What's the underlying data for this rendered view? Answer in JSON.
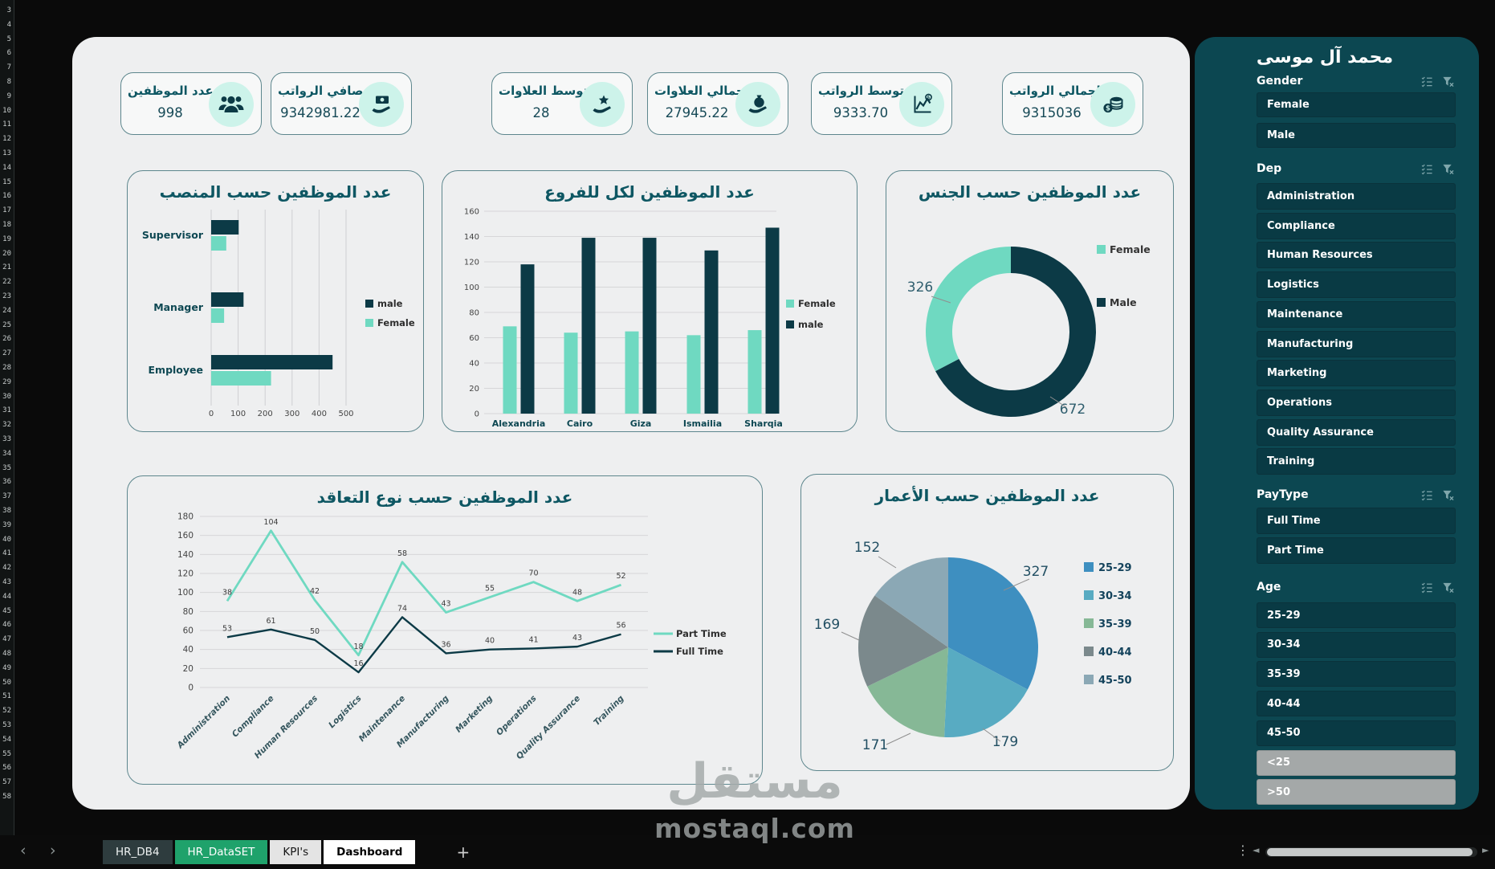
{
  "sidebar": {
    "title": "محمد آل موسى",
    "slicers": [
      {
        "name": "Gender",
        "items": [
          {
            "label": "Female"
          },
          {
            "label": "Male"
          }
        ]
      },
      {
        "name": "Dep",
        "items": [
          {
            "label": "Administration"
          },
          {
            "label": "Compliance"
          },
          {
            "label": "Human Resources"
          },
          {
            "label": "Logistics"
          },
          {
            "label": "Maintenance"
          },
          {
            "label": "Manufacturing"
          },
          {
            "label": "Marketing"
          },
          {
            "label": "Operations"
          },
          {
            "label": "Quality Assurance"
          },
          {
            "label": "Training"
          }
        ]
      },
      {
        "name": "PayType",
        "items": [
          {
            "label": "Full Time"
          },
          {
            "label": "Part Time"
          }
        ]
      },
      {
        "name": "Age",
        "items": [
          {
            "label": "25-29"
          },
          {
            "label": "30-34"
          },
          {
            "label": "35-39"
          },
          {
            "label": "40-44"
          },
          {
            "label": "45-50"
          },
          {
            "label": "<25",
            "disabled": true
          },
          {
            "label": ">50",
            "disabled": true
          }
        ]
      }
    ],
    "header_icons": [
      "multiselect-icon",
      "clear-filter-icon"
    ]
  },
  "kpi_cards": [
    {
      "title": "عدد الموظفين",
      "value": "998",
      "icon": "people-icon"
    },
    {
      "title": "صافي الرواتب",
      "value": "9342981.22",
      "icon": "cash-hand-icon"
    },
    {
      "title": "متوسط العلاوات",
      "value": "28",
      "icon": "star-hand-icon"
    },
    {
      "title": "إجمالي العلاوات",
      "value": "27945.22",
      "icon": "moneybag-hand-icon"
    },
    {
      "title": "متوسط الرواتب",
      "value": "9333.70",
      "icon": "salary-chart-icon"
    },
    {
      "title": "إجمالي الرواتب",
      "value": "9315036",
      "icon": "coins-icon"
    }
  ],
  "chart_data": [
    {
      "type": "bar",
      "orientation": "horizontal",
      "title": "عدد الموظفين حسب المنصب",
      "categories": [
        "Supervisor",
        "Manager",
        "Employee"
      ],
      "series": [
        {
          "name": "male",
          "color": "#0c3a46",
          "values": [
            102,
            120,
            450
          ]
        },
        {
          "name": "Female",
          "color": "#6fd9c1",
          "values": [
            56,
            48,
            222
          ]
        }
      ],
      "xlim": [
        0,
        500
      ],
      "xticks": [
        0,
        100,
        200,
        300,
        400,
        500
      ],
      "grid": true,
      "legend_position": "right"
    },
    {
      "type": "column",
      "title": "عدد الموظفين لكل للفروع",
      "categories": [
        "Alexandria",
        "Cairo",
        "Giza",
        "Ismailia",
        "Sharqia"
      ],
      "series": [
        {
          "name": "Female",
          "color": "#6fd9c1",
          "values": [
            69,
            64,
            65,
            62,
            66
          ]
        },
        {
          "name": "male",
          "color": "#0c3a46",
          "values": [
            118,
            139,
            139,
            129,
            147
          ]
        }
      ],
      "ylim": [
        0,
        160
      ],
      "yticks": [
        0,
        20,
        40,
        60,
        80,
        100,
        120,
        140,
        160
      ],
      "grid": true,
      "legend_position": "right"
    },
    {
      "type": "donut",
      "title": "عدد الموظفين حسب الجنس",
      "slices": [
        {
          "label": "Male",
          "value": 672,
          "color": "#0c3a46"
        },
        {
          "label": "Female",
          "value": 326,
          "color": "#6fd9c1"
        }
      ],
      "legend": [
        "Female",
        "Male"
      ],
      "data_labels": true,
      "legend_position": "right"
    },
    {
      "type": "line",
      "stacked": true,
      "title": "عدد الموظفين حسب نوع التعاقد",
      "categories": [
        "Administration",
        "Compliance",
        "Human Resources",
        "Logistics",
        "Maintenance",
        "Manufacturing",
        "Marketing",
        "Operations",
        "Quality Assurance",
        "Training"
      ],
      "series": [
        {
          "name": "Part Time",
          "color": "#6fd9c1",
          "values": [
            38,
            104,
            42,
            18,
            58,
            43,
            55,
            70,
            48,
            52
          ]
        },
        {
          "name": "Full Time",
          "color": "#0c3a46",
          "values": [
            53,
            61,
            50,
            16,
            74,
            36,
            40,
            41,
            43,
            56
          ]
        }
      ],
      "ylim": [
        0,
        180
      ],
      "yticks": [
        0,
        20,
        40,
        60,
        80,
        100,
        120,
        140,
        160,
        180
      ],
      "grid": true,
      "data_labels": true,
      "legend_position": "right"
    },
    {
      "type": "pie",
      "title": "عدد الموظفين حسب الأعمار",
      "slices": [
        {
          "label": "25-29",
          "value": 327,
          "color": "#3e8fc0"
        },
        {
          "label": "30-34",
          "value": 179,
          "color": "#58abc2"
        },
        {
          "label": "35-39",
          "value": 171,
          "color": "#86b896"
        },
        {
          "label": "40-44",
          "value": 169,
          "color": "#7b898c"
        },
        {
          "label": "45-50",
          "value": 152,
          "color": "#8ba8b5"
        }
      ],
      "data_labels": true,
      "legend_position": "right"
    }
  ],
  "watermark": {
    "line1": "مستقل",
    "line2": "mostaql.com"
  },
  "sheet_bar": {
    "nav_left": "‹",
    "nav_right": "›",
    "tabs": [
      {
        "label": "HR_DB4",
        "style": "dark"
      },
      {
        "label": "HR_DataSET",
        "style": "green"
      },
      {
        "label": "KPI's",
        "style": "light"
      },
      {
        "label": "Dashboard",
        "style": "active"
      }
    ],
    "add_label": "+",
    "menu": "⋮",
    "scroll_left": "◄",
    "scroll_right": "►"
  },
  "worksheet": {
    "row_start": 3,
    "row_end": 58
  },
  "colors": {
    "accent_mint": "#6fd9c1",
    "accent_dark": "#0c3a46",
    "title_teal": "#0e5763",
    "panel_bg": "#0c4751",
    "slicer_item_bg": "#093a44",
    "disabled_item_bg": "#a4a8a8",
    "canvas_bg": "#eeeff0",
    "tab_green": "#1fa26b"
  }
}
